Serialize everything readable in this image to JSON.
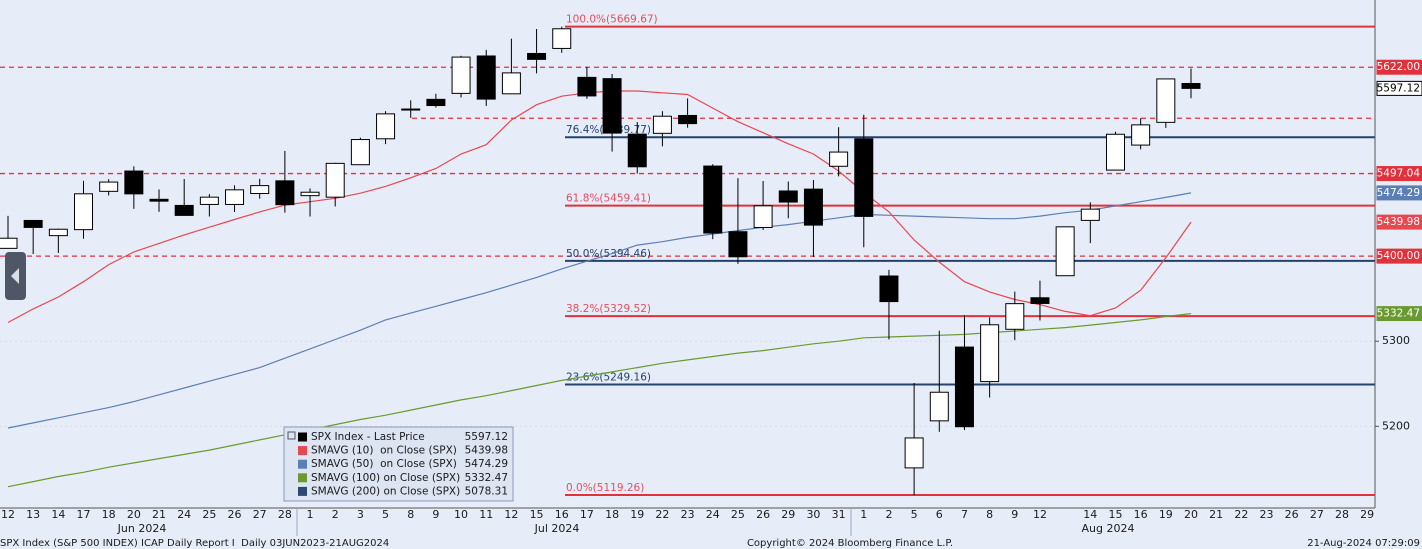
{
  "chart_data": {
    "type": "candlestick",
    "categories": [
      "12",
      "13",
      "14",
      "17",
      "18",
      "20",
      "21",
      "24",
      "25",
      "26",
      "27",
      "28",
      "1",
      "2",
      "3",
      "5",
      "8",
      "9",
      "10",
      "11",
      "12",
      "15",
      "16",
      "17",
      "18",
      "19",
      "22",
      "23",
      "24",
      "25",
      "26",
      "29",
      "30",
      "31",
      "1",
      "2",
      "5",
      "6",
      "7",
      "8",
      "9",
      "12",
      null,
      "14",
      "15",
      "16",
      "19",
      "20",
      "21",
      "22",
      "23",
      "26",
      "27",
      "28",
      "29"
    ],
    "month_labels": [
      "Jun 2024",
      "Jul 2024",
      "Aug 2024"
    ],
    "ylim": [
      5104,
      5701
    ],
    "yticks": [
      5200,
      5300
    ],
    "grid": true,
    "candles": {
      "name": "SPX Index - Last Price",
      "color": "#000000",
      "last_value": 5597.12,
      "open": [
        5409.13,
        5441.93,
        5424.08,
        5431.11,
        5476.15,
        5499.99,
        5466.77,
        5459.58,
        5460.73,
        5460.71,
        5473.59,
        5488.48,
        5471.08,
        5469.3,
        5507.44,
        5537.91,
        5572.75,
        5584.24,
        5591.26,
        5635.21,
        5590.76,
        5638.16,
        5644.09,
        5610.07,
        5608.56,
        5543.37,
        5544.31,
        5565.3,
        5505.84,
        5428.7,
        5433.67,
        5476.55,
        5478.73,
        5505.59,
        5537.84,
        5376.63,
        5151.14,
        5206.42,
        5293.13,
        5252.57,
        5314.02,
        5351.09,
        5376.98,
        5442.01,
        5501.13,
        5530.5,
        5557.23,
        5602.88,
        null,
        null,
        null,
        null,
        null,
        null,
        null
      ],
      "high": [
        5447.25,
        5441.93,
        5432.39,
        5488.5,
        5490.38,
        5505.53,
        5478.31,
        5490.66,
        5472.88,
        5483.14,
        5490.81,
        5523.64,
        5479.55,
        5509.69,
        5539.27,
        5570.33,
        5583.11,
        5590.75,
        5635.39,
        5642.45,
        5655.56,
        5666.94,
        5669.67,
        5622.49,
        5614.05,
        5557.5,
        5570.36,
        5585.34,
        5508.04,
        5491.59,
        5488.32,
        5487.74,
        5489.46,
        5551.51,
        5566.16,
        5383.89,
        5250.89,
        5312.34,
        5330.64,
        5328.03,
        5358.29,
        5371.2,
        5434.49,
        5463.22,
        5546.23,
        5561.98,
        5608.3,
        5620.51,
        null,
        null,
        null,
        null,
        null,
        null,
        null
      ],
      "low": [
        5409.13,
        5402.51,
        5403.75,
        5420.4,
        5471.32,
        5455.56,
        5452.03,
        5447.59,
        5446.56,
        5451.87,
        5467.54,
        5451.12,
        5446.53,
        5458.43,
        5507.42,
        5531.63,
        5562.51,
        5574.57,
        5586.44,
        5576.53,
        5590.44,
        5614.75,
        5639.02,
        5584.81,
        5522.81,
        5497.04,
        5529.04,
        5550.9,
        5419.98,
        5390.95,
        5430.7,
        5444.44,
        5398.95,
        5493.75,
        5410.42,
        5302.03,
        5119.26,
        5193.56,
        5195.54,
        5233.85,
        5301.27,
        5324.37,
        5376.98,
        5415.29,
        5501.13,
        5525.44,
        5550.74,
        5585.5,
        null,
        null,
        null,
        null,
        null,
        null,
        null
      ],
      "close": [
        5421.03,
        5433.74,
        5431.6,
        5473.23,
        5487.03,
        5473.17,
        5464.62,
        5447.87,
        5469.3,
        5477.9,
        5482.87,
        5460.48,
        5475.09,
        5509.01,
        5537.02,
        5567.19,
        5572.85,
        5576.98,
        5633.91,
        5584.54,
        5615.35,
        5631.22,
        5667.2,
        5588.27,
        5544.59,
        5505.0,
        5564.41,
        5555.74,
        5427.13,
        5399.22,
        5459.1,
        5463.54,
        5436.44,
        5522.3,
        5446.68,
        5346.56,
        5186.33,
        5240.03,
        5199.5,
        5319.31,
        5344.16,
        5344.39,
        5434.43,
        5455.21,
        5543.22,
        5554.25,
        5608.25,
        5597.12,
        null,
        null,
        null,
        null,
        null,
        null,
        null
      ]
    },
    "series": [
      {
        "name": "SMAVG (10)  on Close (SPX)",
        "color": "#e8474f",
        "last_value": 5439.98,
        "values": [
          5322,
          5338,
          5352,
          5370,
          5390,
          5405,
          5415,
          5425,
          5434,
          5443,
          5452,
          5460,
          5464,
          5468,
          5474,
          5482,
          5492,
          5503,
          5520,
          5531,
          5560,
          5578,
          5588,
          5592,
          5594,
          5594,
          5592,
          5590,
          5574,
          5558,
          5545,
          5532,
          5520,
          5500,
          5475,
          5452,
          5419,
          5393,
          5370,
          5358,
          5349,
          5343,
          5335,
          5330,
          5339,
          5360,
          5398,
          5439.98,
          null,
          null,
          null,
          null,
          null,
          null,
          null
        ]
      },
      {
        "name": "SMAVG (50)  on Close (SPX)",
        "color": "#5b7fb5",
        "last_value": 5474.29,
        "values": [
          5198,
          5204,
          5210,
          5216,
          5222,
          5229,
          5237,
          5245,
          5253,
          5261,
          5269,
          5280,
          5291,
          5302,
          5313,
          5325,
          5333,
          5341,
          5349,
          5357,
          5366,
          5375,
          5385,
          5394,
          5403,
          5413,
          5417,
          5422,
          5426,
          5430,
          5434,
          5437,
          5441,
          5445,
          5449,
          5448,
          5447,
          5446,
          5445,
          5444,
          5444,
          5447,
          5451,
          5454,
          5459,
          5464,
          5469,
          5474.29,
          null,
          null,
          null,
          null,
          null,
          null,
          null
        ]
      },
      {
        "name": "SMAVG (100) on Close (SPX)",
        "color": "#6a9a2f",
        "last_value": 5332.47,
        "values": [
          5129,
          5135,
          5141,
          5146,
          5152,
          5157,
          5162,
          5167,
          5172,
          5178,
          5184,
          5190,
          5196,
          5202,
          5208,
          5213,
          5219,
          5225,
          5231,
          5236,
          5242,
          5248,
          5254,
          5259,
          5264,
          5269,
          5274,
          5278,
          5282,
          5286,
          5289,
          5293,
          5297,
          5300,
          5304,
          5305,
          5306,
          5307,
          5308,
          5310,
          5312,
          5314,
          5316,
          5319,
          5322,
          5325,
          5329,
          5332.47,
          null,
          null,
          null,
          null,
          null,
          null,
          null
        ]
      },
      {
        "name": "SMAVG (200) on Close (SPX)",
        "color": "#2d4a72",
        "last_value": 5078.31
      }
    ],
    "fib_levels": [
      {
        "value": 5669.67,
        "label": "100.0%(5669.67)",
        "color": "#e0323c"
      },
      {
        "value": 5539.77,
        "label": "76.4%(5539.77)",
        "color": "#25426e"
      },
      {
        "value": 5459.41,
        "label": "61.8%(5459.41)",
        "color": "#e0323c"
      },
      {
        "value": 5394.46,
        "label": "50.0%(5394.46)",
        "color": "#25426e"
      },
      {
        "value": 5329.52,
        "label": "38.2%(5329.52)",
        "color": "#e0323c"
      },
      {
        "value": 5249.16,
        "label": "23.6%(5249.16)",
        "color": "#25426e"
      },
      {
        "value": 5119.26,
        "label": "0.0%(5119.26)",
        "color": "#e0323c"
      }
    ],
    "hlines": [
      {
        "value": 5562,
        "color": "#e0323c",
        "style": "dashed"
      }
    ],
    "price_tags": [
      {
        "value": 5622,
        "label": "5622.00",
        "fill": "#e0323c",
        "text_color": "#ffffff",
        "line": "dashed"
      },
      {
        "value": 5597.12,
        "fill": "#ffffff",
        "text_color": "#000000"
      },
      {
        "value": 5497.04,
        "fill": "#e0323c",
        "text_color": "#ffffff",
        "line": "dashed"
      },
      {
        "value": 5474.29,
        "fill": "#5b7fb5",
        "text_color": "#ffffff"
      },
      {
        "value": 5439.98,
        "fill": "#e8474f",
        "text_color": "#ffffff"
      },
      {
        "value": 5400,
        "label": "5400.00",
        "fill": "#e0323c",
        "text_color": "#ffffff",
        "line": "dashed"
      },
      {
        "value": 5332.47,
        "fill": "#6a9a2f",
        "text_color": "#ffffff"
      }
    ],
    "footer": {
      "left": "SPX Index (S&P 500 INDEX) ICAP Daily Report I  Daily 03JUN2023-21AUG2024",
      "center": "Copyright© 2024 Bloomberg Finance L.P.",
      "right": "21-Aug-2024 07:29:09"
    }
  }
}
